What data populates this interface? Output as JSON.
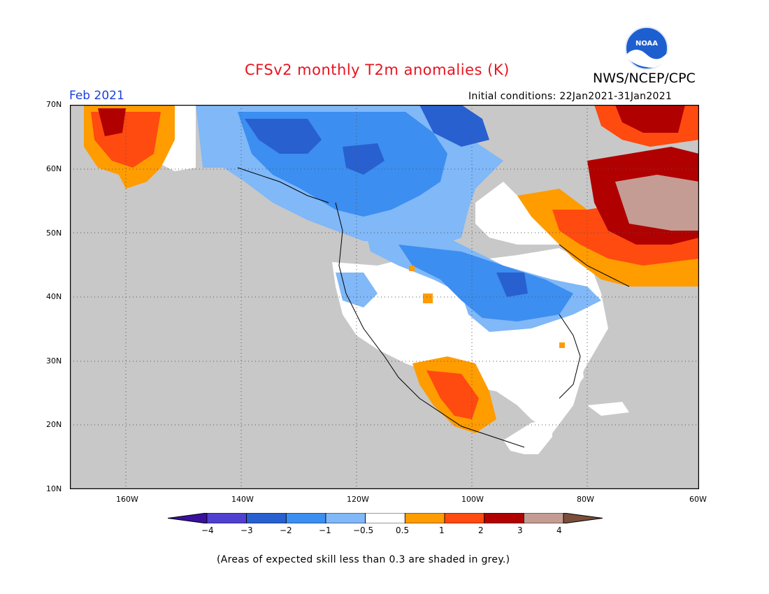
{
  "header": {
    "title": "CFSv2 monthly T2m anomalies (K)",
    "org": "NWS/NCEP/CPC",
    "logo_text": "NOAA",
    "month": "Feb 2021",
    "init": "Initial conditions: 22Jan2021-31Jan2021"
  },
  "map": {
    "lat_labels": [
      "70N",
      "60N",
      "50N",
      "40N",
      "30N",
      "20N",
      "10N"
    ],
    "lon_labels": [
      "160W",
      "140W",
      "120W",
      "100W",
      "80W",
      "60W"
    ],
    "skill_mask_color": "#c8c8c8",
    "ocean_color": "#c8c8c8"
  },
  "legend": {
    "tick_labels": [
      "−4",
      "−3",
      "−2",
      "−1",
      "−0.5",
      "0.5",
      "1",
      "2",
      "3",
      "4"
    ],
    "colors": [
      "#3a10a0",
      "#5040d0",
      "#2860d0",
      "#3c8ef0",
      "#80b8f8",
      "#ffffff",
      "#ff9c00",
      "#ff4a10",
      "#b00000",
      "#c49c94",
      "#7a4e3a"
    ]
  },
  "footnote": "(Areas of expected skill less than 0.3 are shaded in grey.)"
}
